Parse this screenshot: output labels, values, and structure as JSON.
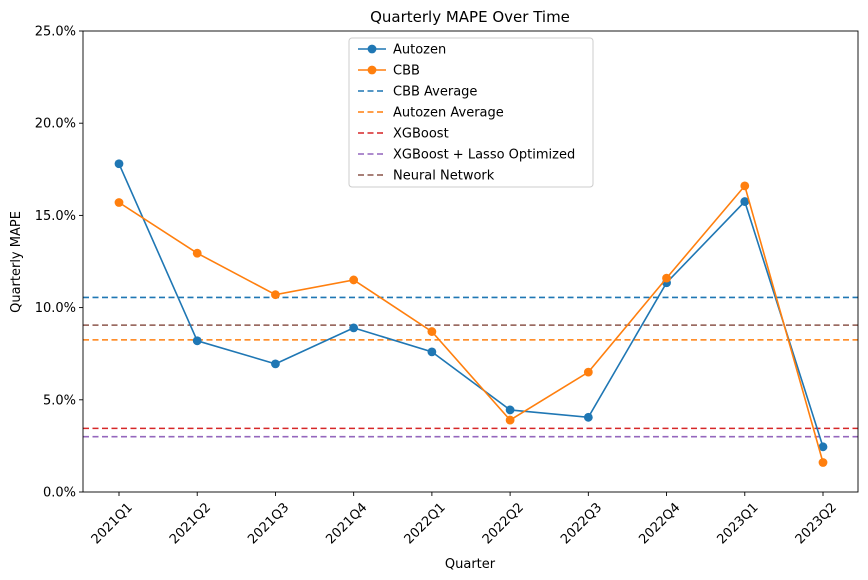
{
  "chart_data": {
    "type": "line",
    "title": "Quarterly MAPE Over Time",
    "xlabel": "Quarter",
    "ylabel": "Quarterly MAPE",
    "categories": [
      "2021Q1",
      "2021Q2",
      "2021Q3",
      "2021Q4",
      "2022Q1",
      "2022Q2",
      "2022Q3",
      "2022Q4",
      "2023Q1",
      "2023Q2"
    ],
    "ylim": [
      0,
      25
    ],
    "yticks": [
      0,
      5,
      10,
      15,
      20,
      25
    ],
    "ytick_labels": [
      "0.0%",
      "5.0%",
      "10.0%",
      "15.0%",
      "20.0%",
      "25.0%"
    ],
    "grid": false,
    "legend_position": "top-center",
    "series": [
      {
        "name": "Autozen",
        "color": "#1f77b4",
        "style": "solid-marker",
        "values": [
          17.8,
          8.2,
          6.95,
          8.9,
          7.6,
          4.45,
          4.05,
          11.35,
          15.75,
          2.45
        ]
      },
      {
        "name": "CBB",
        "color": "#ff7f0e",
        "style": "solid-marker",
        "values": [
          15.7,
          12.95,
          10.7,
          11.5,
          8.7,
          3.9,
          6.5,
          11.6,
          16.6,
          1.6
        ]
      }
    ],
    "reference_lines": [
      {
        "name": "CBB Average",
        "color": "#1f77b4",
        "value": 10.55
      },
      {
        "name": "Autozen Average",
        "color": "#ff7f0e",
        "value": 8.25
      },
      {
        "name": "XGBoost",
        "color": "#d62728",
        "value": 3.45
      },
      {
        "name": "XGBoost + Lasso Optimized",
        "color": "#9467bd",
        "value": 3.0
      },
      {
        "name": "Neural Network",
        "color": "#8c564b",
        "value": 9.05
      }
    ]
  }
}
